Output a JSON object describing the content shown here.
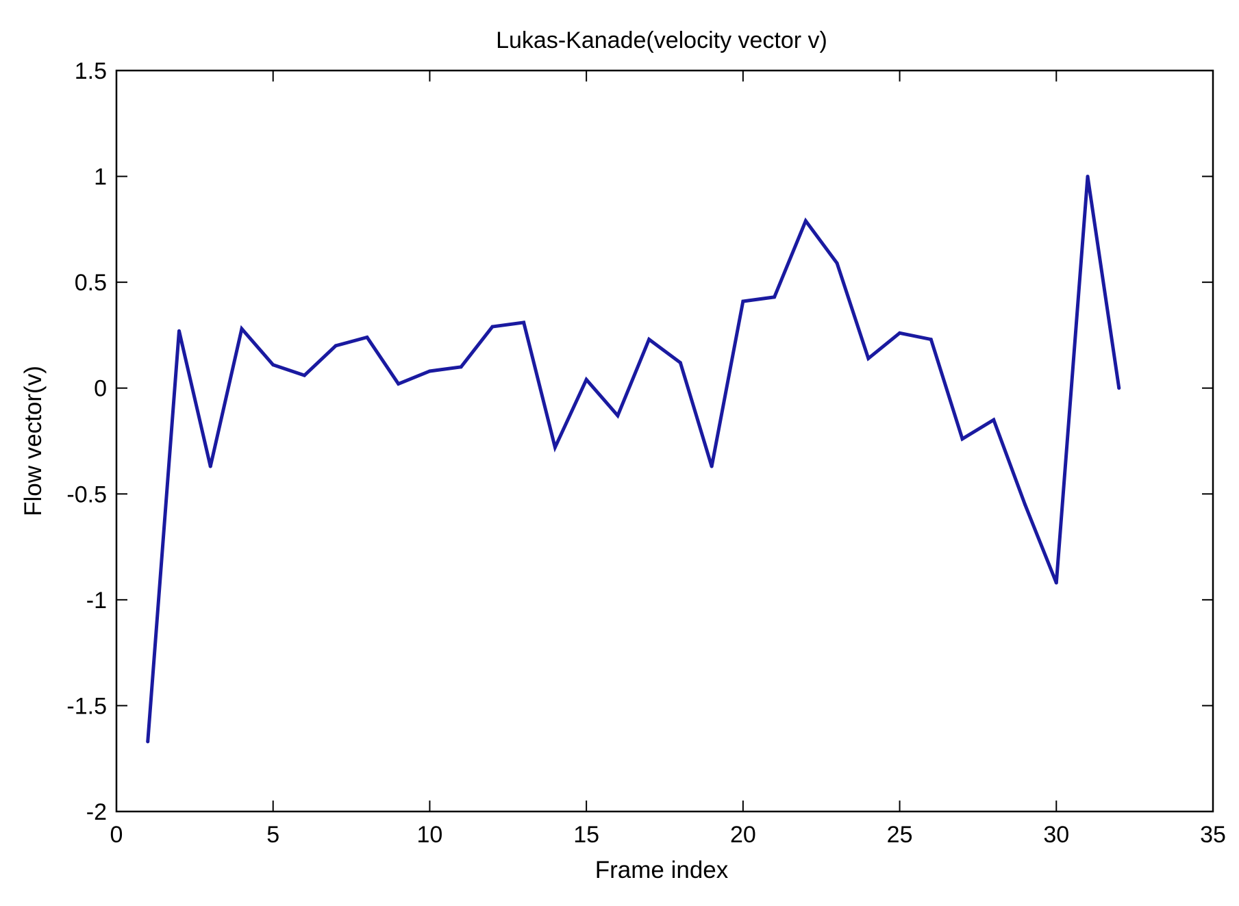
{
  "chart_data": {
    "type": "line",
    "title": "Lukas-Kanade(velocity vector v)",
    "xlabel": "Frame index",
    "ylabel": "Flow vector(v)",
    "xlim": [
      0,
      35
    ],
    "ylim": [
      -2,
      1.5
    ],
    "xticks": [
      0,
      5,
      10,
      15,
      20,
      25,
      30,
      35
    ],
    "yticks": [
      -2,
      -1.5,
      -1,
      -0.5,
      0,
      0.5,
      1,
      1.5
    ],
    "xtick_labels": [
      "0",
      "5",
      "10",
      "15",
      "20",
      "25",
      "30",
      "35"
    ],
    "ytick_labels": [
      "-2",
      "-1.5",
      "-1",
      "-0.5",
      "0",
      "0.5",
      "1",
      "1.5"
    ],
    "grid": false,
    "series": [
      {
        "color": "#1a1aa0",
        "x": [
          1,
          2,
          3,
          4,
          5,
          6,
          7,
          8,
          9,
          10,
          11,
          12,
          13,
          14,
          15,
          16,
          17,
          18,
          19,
          20,
          21,
          22,
          23,
          24,
          25,
          26,
          27,
          28,
          29,
          30,
          31,
          32
        ],
        "y": [
          -1.67,
          0.27,
          -0.37,
          0.28,
          0.11,
          0.06,
          0.2,
          0.24,
          0.02,
          0.08,
          0.1,
          0.29,
          0.31,
          -0.28,
          0.04,
          -0.13,
          0.23,
          0.12,
          -0.37,
          0.41,
          0.43,
          0.79,
          0.59,
          0.14,
          0.26,
          0.23,
          -0.24,
          -0.15,
          -0.55,
          -0.92,
          1.0,
          0.0
        ]
      }
    ]
  }
}
